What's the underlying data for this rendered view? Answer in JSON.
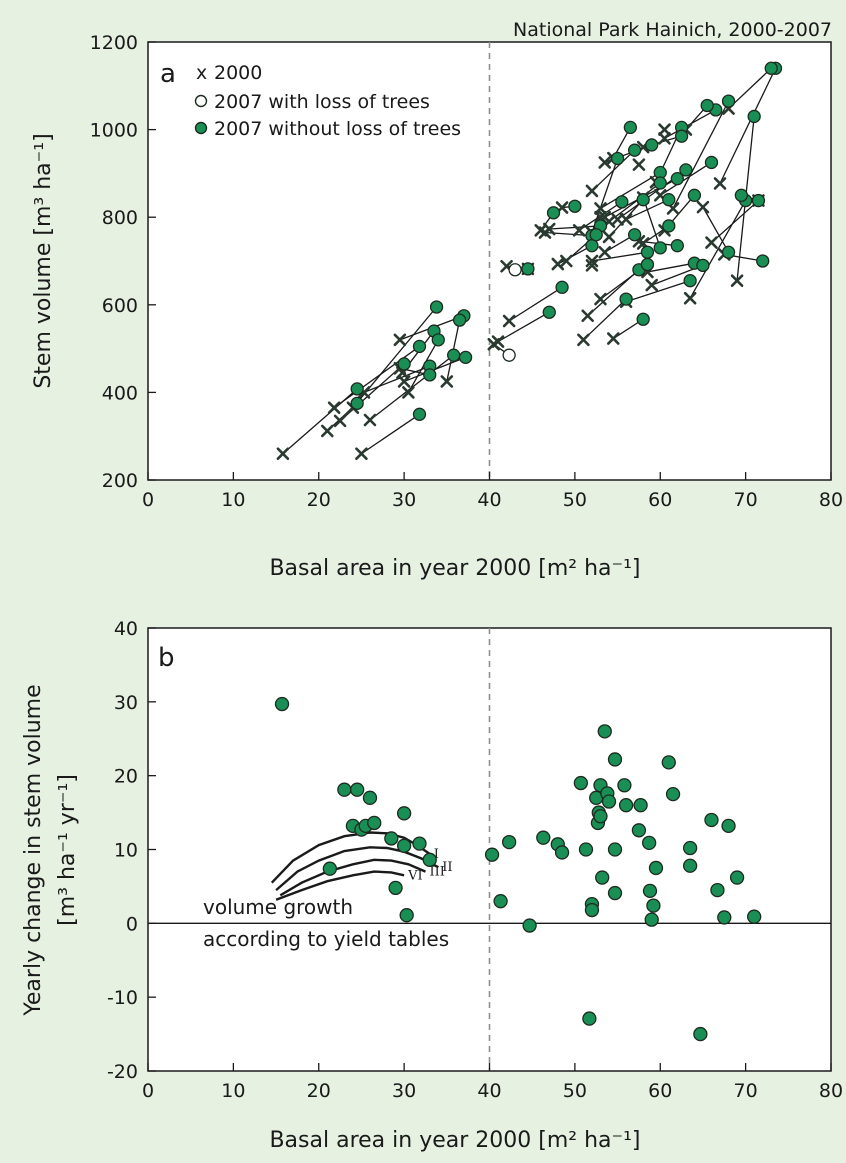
{
  "source_note": "National Park Hainich, 2000-2007",
  "colors": {
    "background": "#e6f1e2",
    "point_fill": "#1a8f55",
    "point_stroke": "#1c2b1f",
    "line": "#1a1a1a",
    "dashed": "#8f8f8f"
  },
  "chart_data": [
    {
      "type": "scatter",
      "panel_label": "a",
      "title": "National Park Hainich, 2000-2007",
      "xlabel": "Basal area in year 2000 [m² ha⁻¹]",
      "ylabel": "Stem volume [m³ ha⁻¹]",
      "xlim": [
        0,
        80
      ],
      "ylim": [
        200,
        1200
      ],
      "xticks": [
        0,
        10,
        20,
        30,
        40,
        50,
        60,
        70,
        80
      ],
      "yticks": [
        200,
        400,
        600,
        800,
        1000,
        1200
      ],
      "reference_x": 40,
      "legend_position": "top-left",
      "legend": [
        {
          "marker": "x",
          "label": "2000"
        },
        {
          "marker": "open-circle",
          "label": "2007 with loss of trees"
        },
        {
          "marker": "filled-circle",
          "label": "2007 without loss of trees"
        }
      ],
      "pairs": [
        [
          15.8,
          260,
          24.5,
          408
        ],
        [
          21.0,
          312,
          24.5,
          375
        ],
        [
          21.8,
          365,
          31.8,
          505
        ],
        [
          22.5,
          335,
          30.0,
          465
        ],
        [
          24.0,
          365,
          33.8,
          595
        ],
        [
          25.0,
          260,
          31.8,
          350
        ],
        [
          25.3,
          400,
          33.0,
          460
        ],
        [
          26.0,
          337,
          35.8,
          485
        ],
        [
          29.5,
          520,
          37.0,
          575
        ],
        [
          29.8,
          445,
          33.5,
          540
        ],
        [
          30.0,
          425,
          37.2,
          480
        ],
        [
          30.5,
          400,
          34.0,
          520
        ],
        [
          35.0,
          425,
          36.5,
          565
        ],
        [
          29.5,
          455,
          33.0,
          440
        ],
        [
          42.0,
          688,
          44.5,
          682
        ],
        [
          42.3,
          563,
          48.5,
          640
        ],
        [
          46.5,
          765,
          52.0,
          758
        ],
        [
          47.0,
          773,
          53.0,
          780
        ],
        [
          48.0,
          693,
          52.0,
          735
        ],
        [
          48.5,
          822,
          50.0,
          825
        ],
        [
          51.5,
          575,
          57.5,
          680
        ],
        [
          51.0,
          520,
          56.0,
          613
        ],
        [
          52.0,
          700,
          58.5,
          720
        ],
        [
          52.0,
          765,
          55.0,
          934
        ],
        [
          52.0,
          860,
          57.0,
          953
        ],
        [
          53.0,
          613,
          58.5,
          692
        ],
        [
          53.0,
          820,
          60.0,
          902
        ],
        [
          53.5,
          800,
          62.0,
          888
        ],
        [
          53.5,
          925,
          59.0,
          965
        ],
        [
          54.0,
          790,
          60.0,
          878
        ],
        [
          54.0,
          755,
          58.0,
          840
        ],
        [
          54.5,
          935,
          56.5,
          1005
        ],
        [
          54.5,
          523,
          58.0,
          567
        ],
        [
          55.0,
          795,
          63.0,
          908
        ],
        [
          56.0,
          607,
          63.5,
          655
        ],
        [
          57.5,
          745,
          62.0,
          735
        ],
        [
          58.0,
          740,
          61.0,
          780
        ],
        [
          58.5,
          675,
          64.0,
          695
        ],
        [
          59.0,
          645,
          65.0,
          690
        ],
        [
          59.5,
          880,
          62.5,
          1005
        ],
        [
          60.0,
          850,
          66.0,
          925
        ],
        [
          60.5,
          980,
          66.5,
          1045
        ],
        [
          61.5,
          820,
          68.0,
          1065
        ],
        [
          63.5,
          615,
          70.0,
          838
        ],
        [
          66.0,
          742,
          71.5,
          838
        ],
        [
          67.5,
          715,
          72.0,
          700
        ],
        [
          69.0,
          655,
          71.0,
          1030
        ],
        [
          65.0,
          823,
          68.0,
          720
        ],
        [
          67.0,
          877,
          73.5,
          1140
        ],
        [
          68.0,
          1048,
          73.0,
          1140
        ],
        [
          71.5,
          838,
          69.5,
          850
        ],
        [
          63.0,
          1000,
          65.5,
          1055
        ],
        [
          58.0,
          960,
          62.5,
          985
        ],
        [
          60.5,
          770,
          64.0,
          850
        ],
        [
          53.5,
          720,
          57.0,
          760
        ],
        [
          49.0,
          700,
          52.5,
          760
        ],
        [
          50.5,
          770,
          55.5,
          835
        ],
        [
          46.0,
          770,
          47.5,
          810
        ],
        [
          44.5,
          682,
          43.0,
          680
        ],
        [
          40.5,
          510,
          42.3,
          485
        ],
        [
          41.0,
          516,
          47.0,
          583
        ],
        [
          56.0,
          795,
          61.0,
          840
        ],
        [
          58.0,
          845,
          60.0,
          730
        ]
      ],
      "open_circles": [
        [
          43.0,
          680
        ],
        [
          42.3,
          485
        ],
        [
          54.0,
          720
        ]
      ],
      "x_markers_only": [
        [
          52.0,
          690
        ],
        [
          53.0,
          800
        ],
        [
          57.5,
          920
        ],
        [
          60.5,
          1000
        ]
      ]
    },
    {
      "type": "scatter",
      "panel_label": "b",
      "xlabel": "Basal area in year 2000 [m² ha⁻¹]",
      "ylabel_line1": "Yearly change in stem volume",
      "ylabel_line2": "[m³ ha⁻¹ yr⁻¹]",
      "xlim": [
        0,
        80
      ],
      "ylim": [
        -20,
        40
      ],
      "xticks": [
        0,
        10,
        20,
        30,
        40,
        50,
        60,
        70,
        80
      ],
      "yticks": [
        -20,
        -10,
        0,
        10,
        20,
        30,
        40
      ],
      "reference_x": 40,
      "zero_line": 0,
      "annotation_line1": "volume growth",
      "annotation_line2": "according to yield tables",
      "points": [
        [
          15.7,
          29.7
        ],
        [
          23.0,
          18.1
        ],
        [
          24.5,
          18.1
        ],
        [
          26.0,
          17.0
        ],
        [
          30.0,
          14.9
        ],
        [
          24.0,
          13.2
        ],
        [
          25.0,
          12.7
        ],
        [
          25.5,
          13.2
        ],
        [
          26.5,
          13.6
        ],
        [
          28.5,
          11.5
        ],
        [
          30.0,
          10.5
        ],
        [
          31.8,
          10.8
        ],
        [
          33.0,
          8.6
        ],
        [
          21.3,
          7.4
        ],
        [
          29.0,
          4.8
        ],
        [
          30.3,
          1.1
        ],
        [
          40.3,
          9.3
        ],
        [
          41.3,
          3.0
        ],
        [
          42.3,
          11.0
        ],
        [
          44.7,
          -0.3
        ],
        [
          46.3,
          11.6
        ],
        [
          48.0,
          10.7
        ],
        [
          48.5,
          9.6
        ],
        [
          50.7,
          19.0
        ],
        [
          51.3,
          10.0
        ],
        [
          51.7,
          -12.9
        ],
        [
          52.0,
          2.6
        ],
        [
          52.0,
          1.8
        ],
        [
          52.5,
          17.0
        ],
        [
          52.7,
          13.6
        ],
        [
          52.8,
          15.0
        ],
        [
          53.0,
          18.7
        ],
        [
          53.0,
          14.5
        ],
        [
          53.2,
          6.2
        ],
        [
          53.5,
          26.0
        ],
        [
          53.8,
          17.6
        ],
        [
          54.0,
          16.5
        ],
        [
          54.7,
          22.2
        ],
        [
          54.7,
          10.0
        ],
        [
          54.7,
          4.1
        ],
        [
          55.8,
          18.7
        ],
        [
          56.0,
          16.0
        ],
        [
          57.5,
          12.6
        ],
        [
          57.7,
          16.0
        ],
        [
          58.7,
          10.9
        ],
        [
          58.8,
          4.4
        ],
        [
          59.0,
          0.5
        ],
        [
          59.2,
          2.4
        ],
        [
          59.5,
          7.5
        ],
        [
          61.0,
          21.8
        ],
        [
          61.5,
          17.5
        ],
        [
          63.5,
          10.2
        ],
        [
          63.5,
          7.8
        ],
        [
          64.7,
          -15.0
        ],
        [
          66.0,
          14.0
        ],
        [
          66.7,
          4.5
        ],
        [
          67.5,
          0.8
        ],
        [
          68.0,
          13.2
        ],
        [
          69.0,
          6.2
        ],
        [
          71.0,
          0.9
        ]
      ],
      "yield_curves": [
        {
          "name": "I",
          "points": [
            [
              14.5,
              5.5
            ],
            [
              17,
              8.5
            ],
            [
              20,
              10.6
            ],
            [
              23,
              11.8
            ],
            [
              26,
              12.3
            ],
            [
              28,
              12.2
            ],
            [
              30,
              11.6
            ],
            [
              31.5,
              10.6
            ],
            [
              33,
              9.4
            ]
          ]
        },
        {
          "name": "II",
          "points": [
            [
              15,
              4.5
            ],
            [
              17.5,
              7.0
            ],
            [
              20,
              8.5
            ],
            [
              23,
              9.8
            ],
            [
              26,
              10.3
            ],
            [
              28,
              10.2
            ],
            [
              30,
              9.7
            ],
            [
              32,
              8.8
            ],
            [
              34,
              7.6
            ]
          ]
        },
        {
          "name": "III",
          "points": [
            [
              15.5,
              3.8
            ],
            [
              18,
              5.5
            ],
            [
              21,
              7.0
            ],
            [
              24,
              8.0
            ],
            [
              26.5,
              8.6
            ],
            [
              28.5,
              8.5
            ],
            [
              30.5,
              8.0
            ],
            [
              32.5,
              7.0
            ]
          ]
        },
        {
          "name": "VI",
          "points": [
            [
              15,
              3.2
            ],
            [
              18,
              4.5
            ],
            [
              21,
              5.7
            ],
            [
              24,
              6.5
            ],
            [
              26.5,
              7.0
            ],
            [
              28.5,
              6.9
            ],
            [
              30,
              6.5
            ]
          ]
        }
      ]
    }
  ]
}
